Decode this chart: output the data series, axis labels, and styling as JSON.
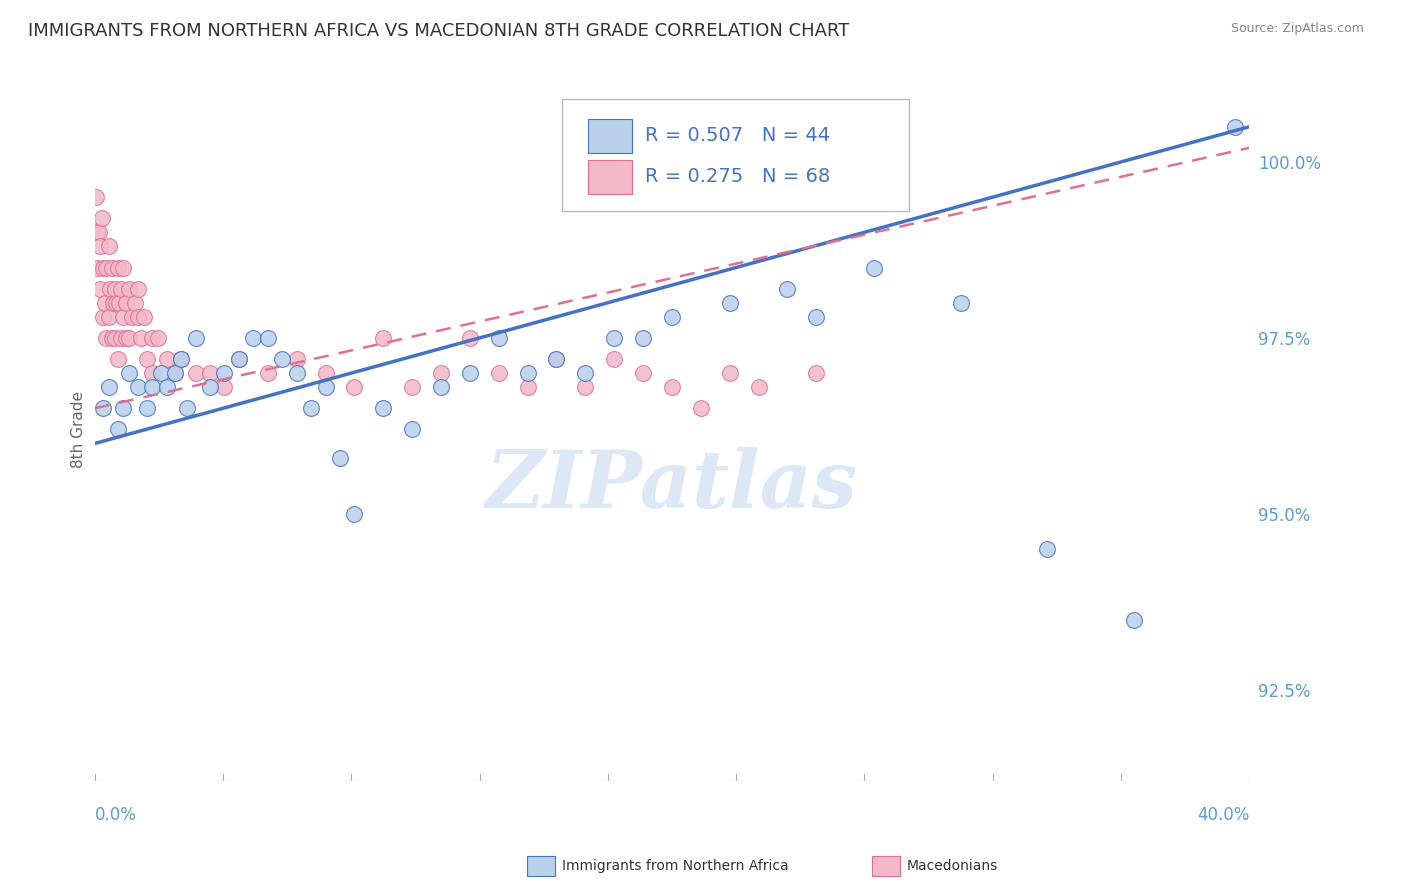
{
  "title": "IMMIGRANTS FROM NORTHERN AFRICA VS MACEDONIAN 8TH GRADE CORRELATION CHART",
  "source": "Source: ZipAtlas.com",
  "ylabel": "8th Grade",
  "yticks": [
    92.5,
    95.0,
    97.5,
    100.0
  ],
  "ytick_labels": [
    "92.5%",
    "95.0%",
    "97.5%",
    "100.0%"
  ],
  "xmin": 0.0,
  "xmax": 40.0,
  "ymin": 91.2,
  "ymax": 101.2,
  "legend_blue_r": "R = 0.507",
  "legend_blue_n": "N = 44",
  "legend_pink_r": "R = 0.275",
  "legend_pink_n": "N = 68",
  "blue_color": "#b8d0ea",
  "pink_color": "#f2b8c8",
  "blue_line_color": "#4472c4",
  "pink_line_color": "#e07090",
  "title_color": "#333333",
  "axis_label_color": "#5b9bd5",
  "watermark_color": "#dce8f5",
  "blue_scatter_x": [
    0.3,
    0.5,
    0.8,
    1.0,
    1.2,
    1.5,
    1.8,
    2.0,
    2.3,
    2.5,
    2.8,
    3.0,
    3.2,
    3.5,
    4.0,
    4.5,
    5.0,
    5.5,
    6.0,
    6.5,
    7.0,
    7.5,
    8.0,
    8.5,
    9.0,
    10.0,
    11.0,
    12.0,
    13.0,
    14.0,
    15.0,
    16.0,
    17.0,
    18.0,
    19.0,
    20.0,
    22.0,
    24.0,
    25.0,
    27.0,
    30.0,
    33.0,
    36.0,
    39.5
  ],
  "blue_scatter_y": [
    96.5,
    96.8,
    96.2,
    96.5,
    97.0,
    96.8,
    96.5,
    96.8,
    97.0,
    96.8,
    97.0,
    97.2,
    96.5,
    97.5,
    96.8,
    97.0,
    97.2,
    97.5,
    97.5,
    97.2,
    97.0,
    96.5,
    96.8,
    95.8,
    95.0,
    96.5,
    96.2,
    96.8,
    97.0,
    97.5,
    97.0,
    97.2,
    97.0,
    97.5,
    97.5,
    97.8,
    98.0,
    98.2,
    97.8,
    98.5,
    98.0,
    94.5,
    93.5,
    100.5
  ],
  "pink_scatter_x": [
    0.05,
    0.1,
    0.1,
    0.15,
    0.2,
    0.2,
    0.25,
    0.3,
    0.3,
    0.35,
    0.4,
    0.4,
    0.5,
    0.5,
    0.55,
    0.6,
    0.6,
    0.65,
    0.7,
    0.7,
    0.75,
    0.8,
    0.8,
    0.85,
    0.9,
    0.9,
    1.0,
    1.0,
    1.1,
    1.1,
    1.2,
    1.2,
    1.3,
    1.4,
    1.5,
    1.5,
    1.6,
    1.7,
    1.8,
    2.0,
    2.0,
    2.2,
    2.5,
    2.8,
    3.0,
    3.5,
    4.0,
    4.5,
    5.0,
    6.0,
    7.0,
    8.0,
    9.0,
    10.0,
    11.0,
    12.0,
    13.0,
    14.0,
    15.0,
    16.0,
    17.0,
    18.0,
    19.0,
    20.0,
    21.0,
    22.0,
    23.0,
    25.0
  ],
  "pink_scatter_y": [
    99.5,
    99.0,
    98.5,
    99.0,
    98.8,
    98.2,
    99.2,
    98.5,
    97.8,
    98.0,
    98.5,
    97.5,
    98.8,
    97.8,
    98.2,
    98.5,
    97.5,
    98.0,
    98.2,
    97.5,
    98.0,
    98.5,
    97.2,
    98.0,
    98.2,
    97.5,
    98.5,
    97.8,
    98.0,
    97.5,
    98.2,
    97.5,
    97.8,
    98.0,
    98.2,
    97.8,
    97.5,
    97.8,
    97.2,
    97.5,
    97.0,
    97.5,
    97.2,
    97.0,
    97.2,
    97.0,
    97.0,
    96.8,
    97.2,
    97.0,
    97.2,
    97.0,
    96.8,
    97.5,
    96.8,
    97.0,
    97.5,
    97.0,
    96.8,
    97.2,
    96.8,
    97.2,
    97.0,
    96.8,
    96.5,
    97.0,
    96.8,
    97.0
  ]
}
